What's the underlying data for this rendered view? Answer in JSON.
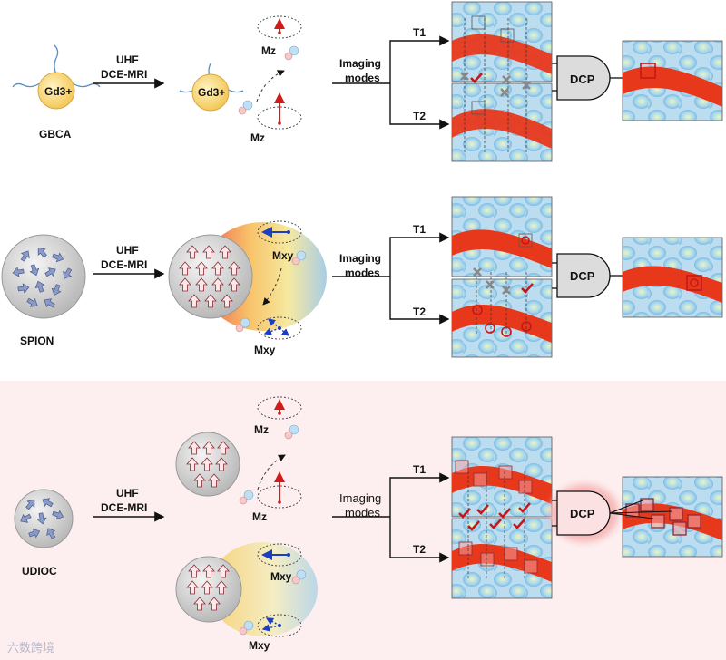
{
  "rows": [
    {
      "id": "gbca",
      "agent_label": "GBCA",
      "core_label": "Gd3+",
      "arrow_top": "UHF",
      "arrow_bottom": "DCE-MRI",
      "moment_top": "Mz",
      "moment_bottom": "Mz",
      "imaging_top": "Imaging",
      "imaging_bottom": "modes",
      "branch_top": "T1",
      "branch_bottom": "T2",
      "gate_label": "DCP"
    },
    {
      "id": "spion",
      "agent_label": "SPION",
      "arrow_top": "UHF",
      "arrow_bottom": "DCE-MRI",
      "moment_top": "Mxy",
      "moment_bottom": "Mxy",
      "imaging_top": "Imaging",
      "imaging_bottom": "modes",
      "branch_top": "T1",
      "branch_bottom": "T2",
      "gate_label": "DCP"
    },
    {
      "id": "udioc",
      "agent_label": "UDIOC",
      "arrow_top": "UHF",
      "arrow_bottom": "DCE-MRI",
      "moment_top": "Mz",
      "moment_mid": "Mz",
      "moment_low": "Mxy",
      "moment_bottom": "Mxy",
      "imaging_top": "Imaging",
      "imaging_bottom": "modes",
      "branch_top": "T1",
      "branch_bottom": "T2",
      "gate_label": "DCP"
    }
  ],
  "colors": {
    "vessel": "#e8381c",
    "tissue": "#cfe6f5",
    "highlight_row": "#fdeff0",
    "spin_up": "#d11b1b",
    "spin_xy": "#1b3ec2",
    "gate_fill": "#dcdcdc",
    "gate_glow": "#f7b8b8"
  },
  "watermark": "六数跨境"
}
